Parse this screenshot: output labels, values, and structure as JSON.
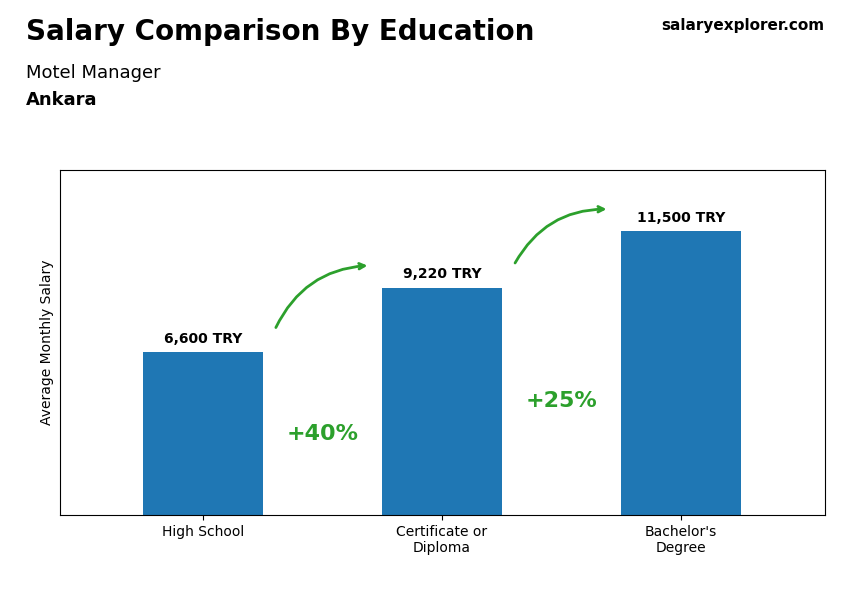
{
  "chart_data": {
    "type": "bar",
    "title": "Salary Comparison By Education",
    "subtitle": [
      "Motel Manager",
      "Ankara"
    ],
    "ylabel": "Average Monthly Salary",
    "categories": [
      "High School",
      "Certificate or\nDiploma",
      "Bachelor's\nDegree"
    ],
    "values": [
      6600,
      9220,
      11500
    ],
    "value_labels": [
      "6,600 TRY",
      "9,220 TRY",
      "11,500 TRY"
    ],
    "data_labels": true,
    "annotations": [
      "+40%",
      "+25%",
      "salaryexplorer.com"
    ],
    "ylim": [
      0,
      14000
    ],
    "tick_labels": "x",
    "grid": false
  }
}
